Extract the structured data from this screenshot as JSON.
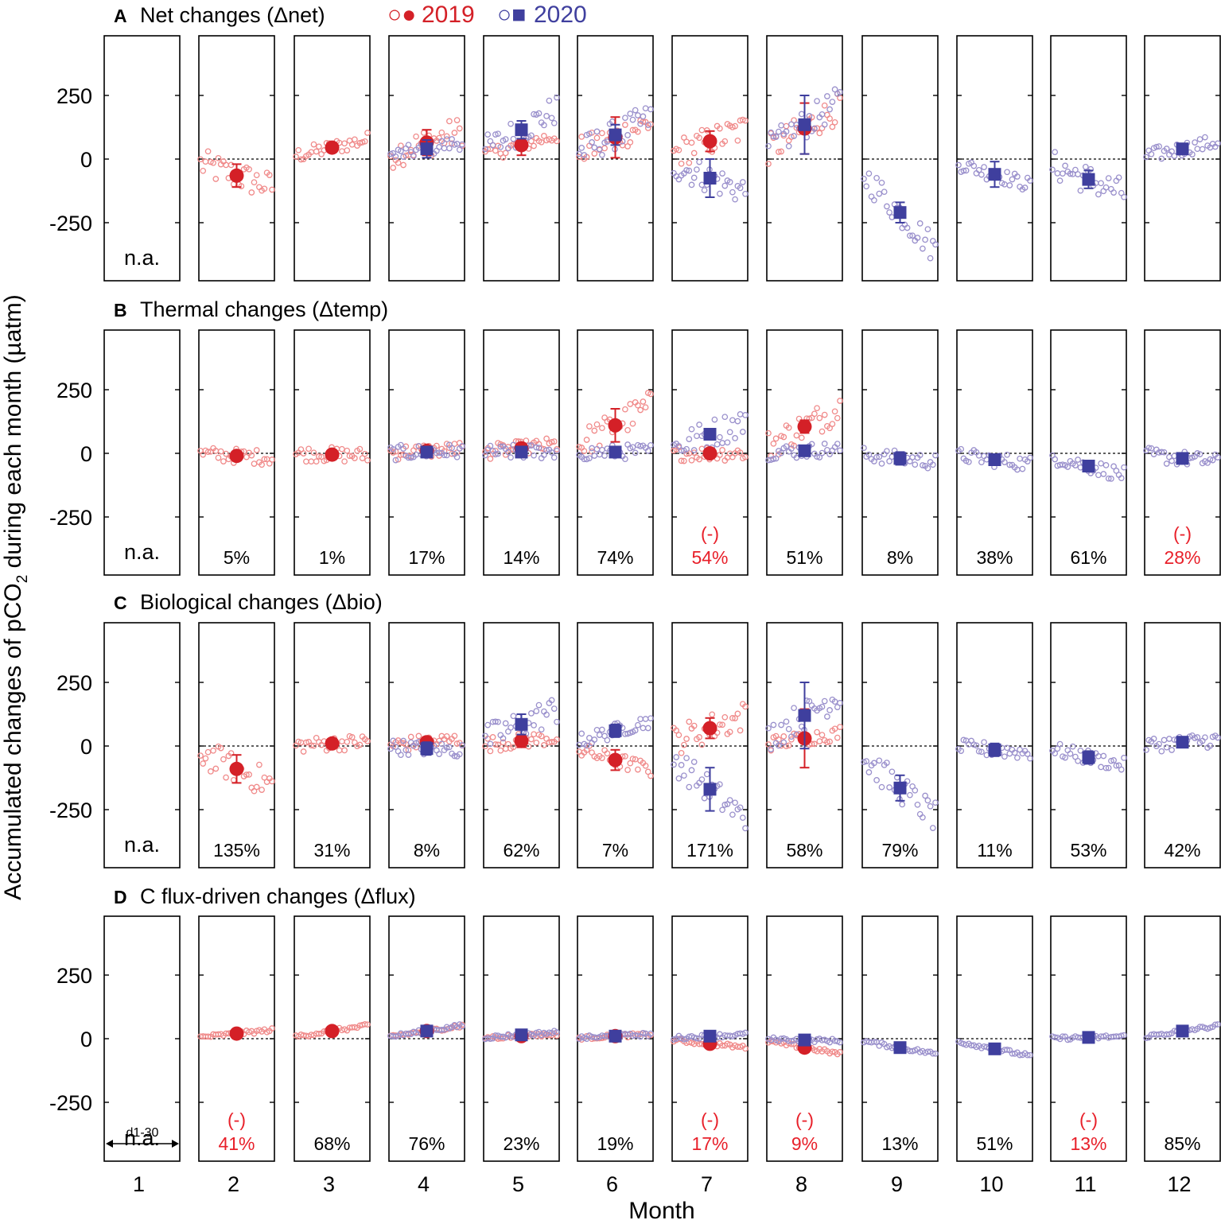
{
  "chart_data": {
    "type": "scatter",
    "ylabel": "Accumulated changes of pCO",
    "ylabel_sub": "2",
    "ylabel_suffix": " during each month (µatm)",
    "xlabel": "Month",
    "months": [
      "1",
      "2",
      "3",
      "4",
      "5",
      "6",
      "7",
      "8",
      "9",
      "10",
      "11",
      "12"
    ],
    "y_ticks": [
      250,
      0,
      -250
    ],
    "y_tick_labels": [
      "250",
      "0",
      "-250"
    ],
    "ylim": [
      -480,
      480
    ],
    "colors": {
      "y2019": "#d42027",
      "y2019_light": "#f08a8a",
      "y2020": "#3f3f9e",
      "y2020_light": "#9a90cc",
      "negative_label": "#e8202a",
      "text": "#000000"
    },
    "legend": {
      "marker_2019": "○●",
      "label_2019": "2019",
      "marker_2020": "○■",
      "label_2020": "2020"
    },
    "na_label": "n.a.",
    "day_range_label": "d1-30",
    "negative_marker": "(-)",
    "panels": [
      {
        "letter": "A",
        "title": "Net changes (Δnet)",
        "mean_2019": [
          null,
          -65,
          45,
          65,
          55,
          85,
          70,
          120,
          null,
          null,
          null,
          null
        ],
        "err_2019": [
          null,
          45,
          0,
          50,
          40,
          80,
          40,
          100,
          null,
          null,
          null,
          null
        ],
        "mean_2020": [
          null,
          null,
          null,
          40,
          115,
          95,
          -75,
          135,
          -210,
          -60,
          -80,
          40
        ],
        "err_2020": [
          null,
          null,
          null,
          35,
          35,
          40,
          75,
          115,
          40,
          50,
          35,
          0
        ],
        "percent": [
          "",
          "",
          "",
          "",
          "",
          "",
          "",
          "",
          "",
          "",
          "",
          ""
        ],
        "negative": [
          false,
          false,
          false,
          false,
          false,
          false,
          false,
          false,
          false,
          false,
          false,
          false
        ]
      },
      {
        "letter": "B",
        "title": "Thermal changes (Δtemp)",
        "mean_2019": [
          null,
          -10,
          -5,
          10,
          20,
          110,
          0,
          105,
          null,
          null,
          null,
          null
        ],
        "err_2019": [
          null,
          0,
          0,
          0,
          0,
          65,
          0,
          25,
          null,
          null,
          null,
          null
        ],
        "mean_2020": [
          null,
          null,
          null,
          5,
          5,
          5,
          75,
          10,
          -20,
          -25,
          -50,
          -20
        ],
        "err_2020": [
          null,
          null,
          null,
          0,
          15,
          0,
          20,
          10,
          25,
          10,
          15,
          0
        ],
        "percent": [
          "",
          "5%",
          "1%",
          "17%",
          "14%",
          "74%",
          "54%",
          "51%",
          "8%",
          "38%",
          "61%",
          "28%"
        ],
        "negative": [
          false,
          false,
          false,
          false,
          false,
          false,
          true,
          false,
          false,
          false,
          false,
          true
        ]
      },
      {
        "letter": "C",
        "title": "Biological changes (Δbio)",
        "mean_2019": [
          null,
          -90,
          10,
          15,
          20,
          -55,
          70,
          30,
          null,
          null,
          null,
          null
        ],
        "err_2019": [
          null,
          55,
          0,
          20,
          25,
          40,
          40,
          115,
          null,
          null,
          null,
          null
        ],
        "mean_2020": [
          null,
          null,
          null,
          -10,
          85,
          60,
          -170,
          120,
          -165,
          -15,
          -45,
          15
        ],
        "err_2020": [
          null,
          null,
          null,
          25,
          40,
          25,
          85,
          130,
          50,
          25,
          25,
          0
        ],
        "percent": [
          "",
          "135%",
          "31%",
          "8%",
          "62%",
          "7%",
          "171%",
          "58%",
          "79%",
          "11%",
          "53%",
          "42%"
        ],
        "negative": [
          false,
          false,
          false,
          false,
          false,
          false,
          false,
          false,
          false,
          false,
          false,
          false
        ]
      },
      {
        "letter": "D",
        "title": "C flux-driven changes (Δflux)",
        "mean_2019": [
          null,
          20,
          30,
          30,
          10,
          10,
          -20,
          -35,
          null,
          null,
          null,
          null
        ],
        "err_2019": [
          null,
          0,
          0,
          0,
          0,
          0,
          0,
          0,
          null,
          null,
          null,
          null
        ],
        "mean_2020": [
          null,
          null,
          null,
          30,
          15,
          10,
          10,
          -5,
          -35,
          -40,
          5,
          30
        ],
        "err_2020": [
          null,
          null,
          null,
          0,
          0,
          0,
          0,
          0,
          0,
          0,
          0,
          0
        ],
        "percent": [
          "",
          "41%",
          "68%",
          "76%",
          "23%",
          "19%",
          "17%",
          "9%",
          "13%",
          "51%",
          "13%",
          "85%"
        ],
        "negative": [
          false,
          true,
          false,
          false,
          false,
          false,
          true,
          true,
          false,
          false,
          true,
          false
        ]
      }
    ]
  }
}
